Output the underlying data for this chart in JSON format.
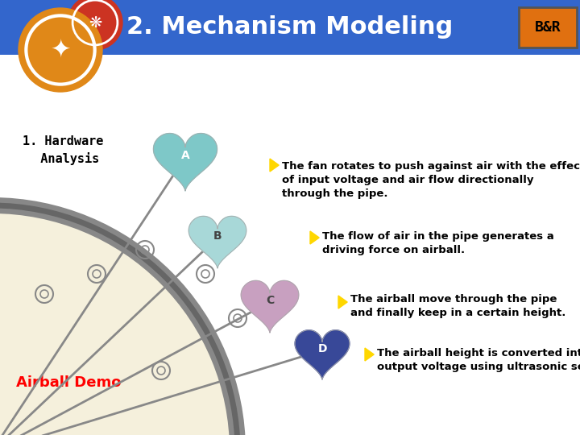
{
  "title": "2. Mechanism Modeling",
  "title_bg_color": "#3366CC",
  "title_text_color": "#FFFFFF",
  "bg_color": "#FFFFFF",
  "left_label_line1": "1. Hardware",
  "left_label_line2": "  Analysis",
  "bottom_label": "Airball Demo",
  "bottom_label_color": "#FF0000",
  "heart_labels": [
    "A",
    "B",
    "C",
    "D"
  ],
  "heart_colors": [
    "#7EC8C8",
    "#A8D8D8",
    "#C8A0C0",
    "#384898"
  ],
  "heart_label_colors": [
    "#FFFFFF",
    "#444444",
    "#444444",
    "#FFFFFF"
  ],
  "descriptions": [
    "The fan rotates to push against air with the effect\nof input voltage and air flow directionally\nthrough the pipe.",
    "The flow of air in the pipe generates a\ndriving force on airball.",
    "The airball move through the pipe\nand finally keep in a certain height.",
    "The airball height is converted into\noutput voltage using ultrasonic sensor."
  ],
  "bullet_color": "#FFD700",
  "logo_bg": "#E07010",
  "logo_text": "B&R",
  "icon_orange": "#E08818",
  "icon_red": "#CC3322",
  "circle_color": "#888888",
  "line_color": "#888888",
  "big_circle_edge": "#888888",
  "big_circle_face": "#EDE8C8",
  "big_circle_inner": "#F5F0DC"
}
